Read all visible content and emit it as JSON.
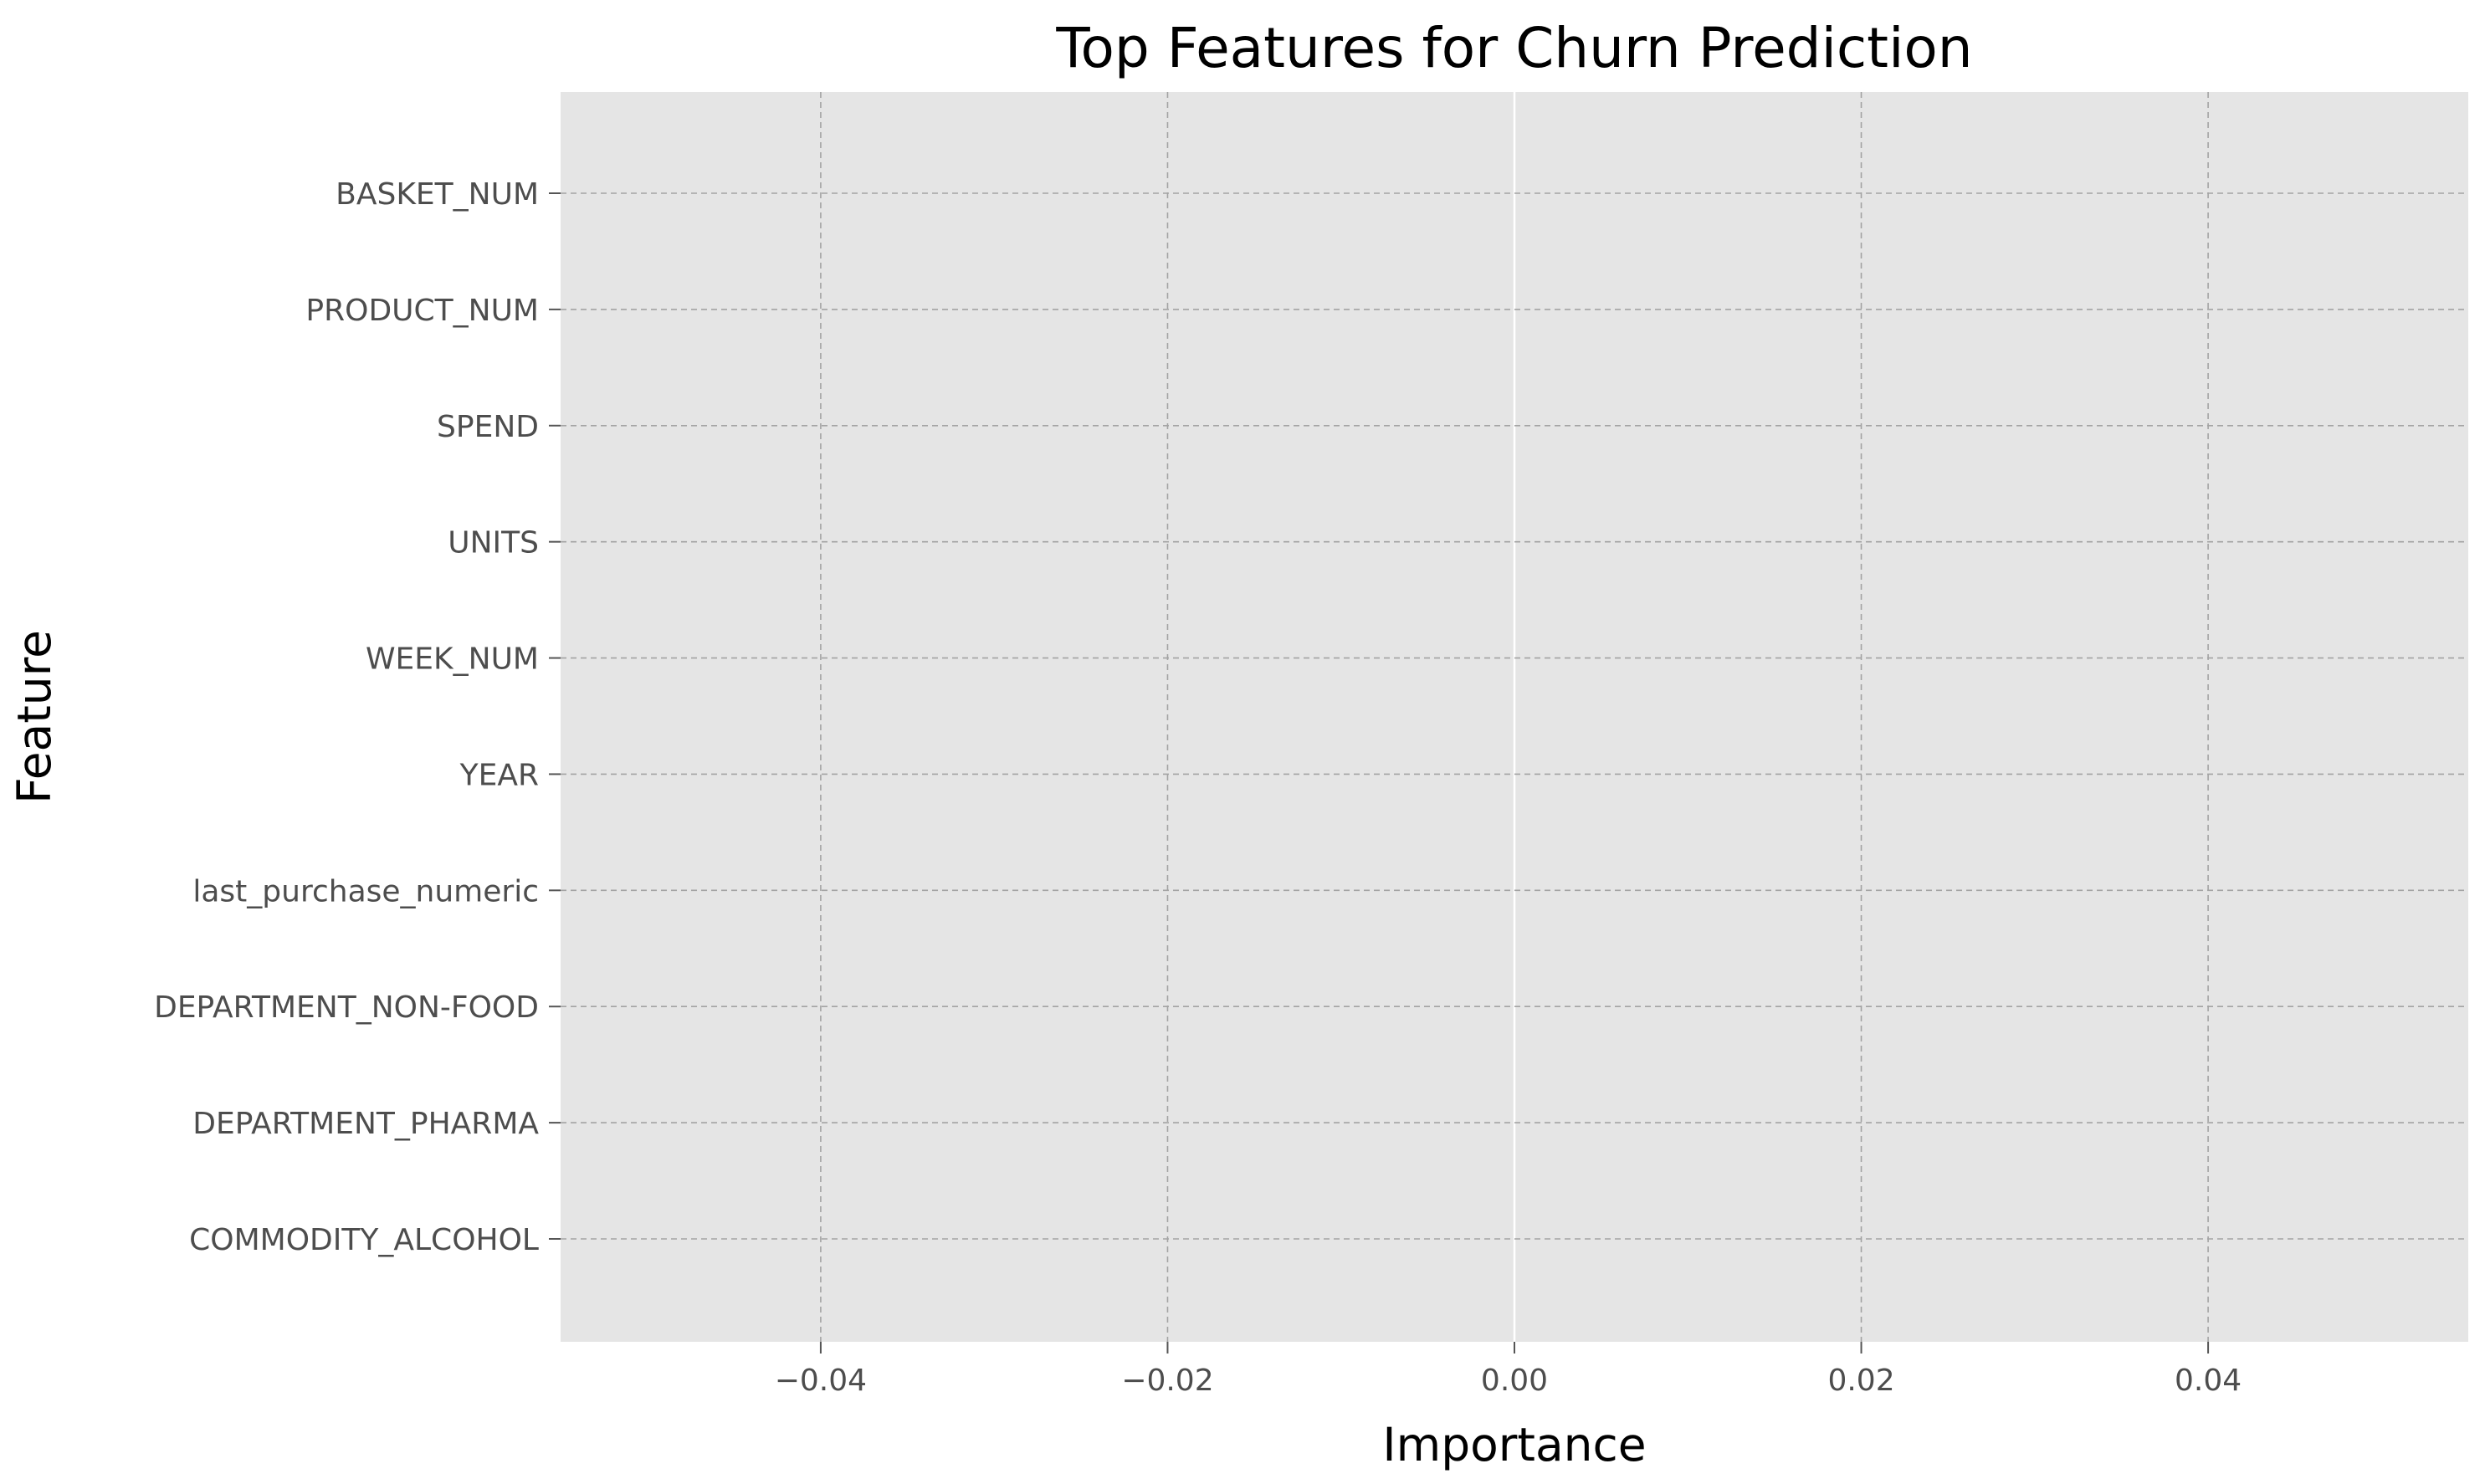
{
  "chart_data": {
    "type": "bar",
    "orientation": "horizontal",
    "title": "Top Features for Churn Prediction",
    "xlabel": "Importance",
    "ylabel": "Feature",
    "categories": [
      "BASKET_NUM",
      "PRODUCT_NUM",
      "SPEND",
      "UNITS",
      "WEEK_NUM",
      "YEAR",
      "last_purchase_numeric",
      "DEPARTMENT_NON-FOOD",
      "DEPARTMENT_PHARMA",
      "COMMODITY_ALCOHOL"
    ],
    "values": [
      0,
      0,
      0,
      0,
      0,
      0,
      0,
      0,
      0,
      0
    ],
    "xlim": [
      -0.055,
      0.055
    ],
    "xticks": [
      -0.04,
      -0.02,
      0.0,
      0.02,
      0.04
    ],
    "xtick_labels": [
      "−0.04",
      "−0.02",
      "0.00",
      "0.02",
      "0.04"
    ],
    "grid": true,
    "colors": {
      "plot_background": "#e5e5e5",
      "grid": "#a3a3a3",
      "zero_line": "#ffffff",
      "bar": "#e24a33",
      "tick_label": "#4d4d4d"
    }
  }
}
